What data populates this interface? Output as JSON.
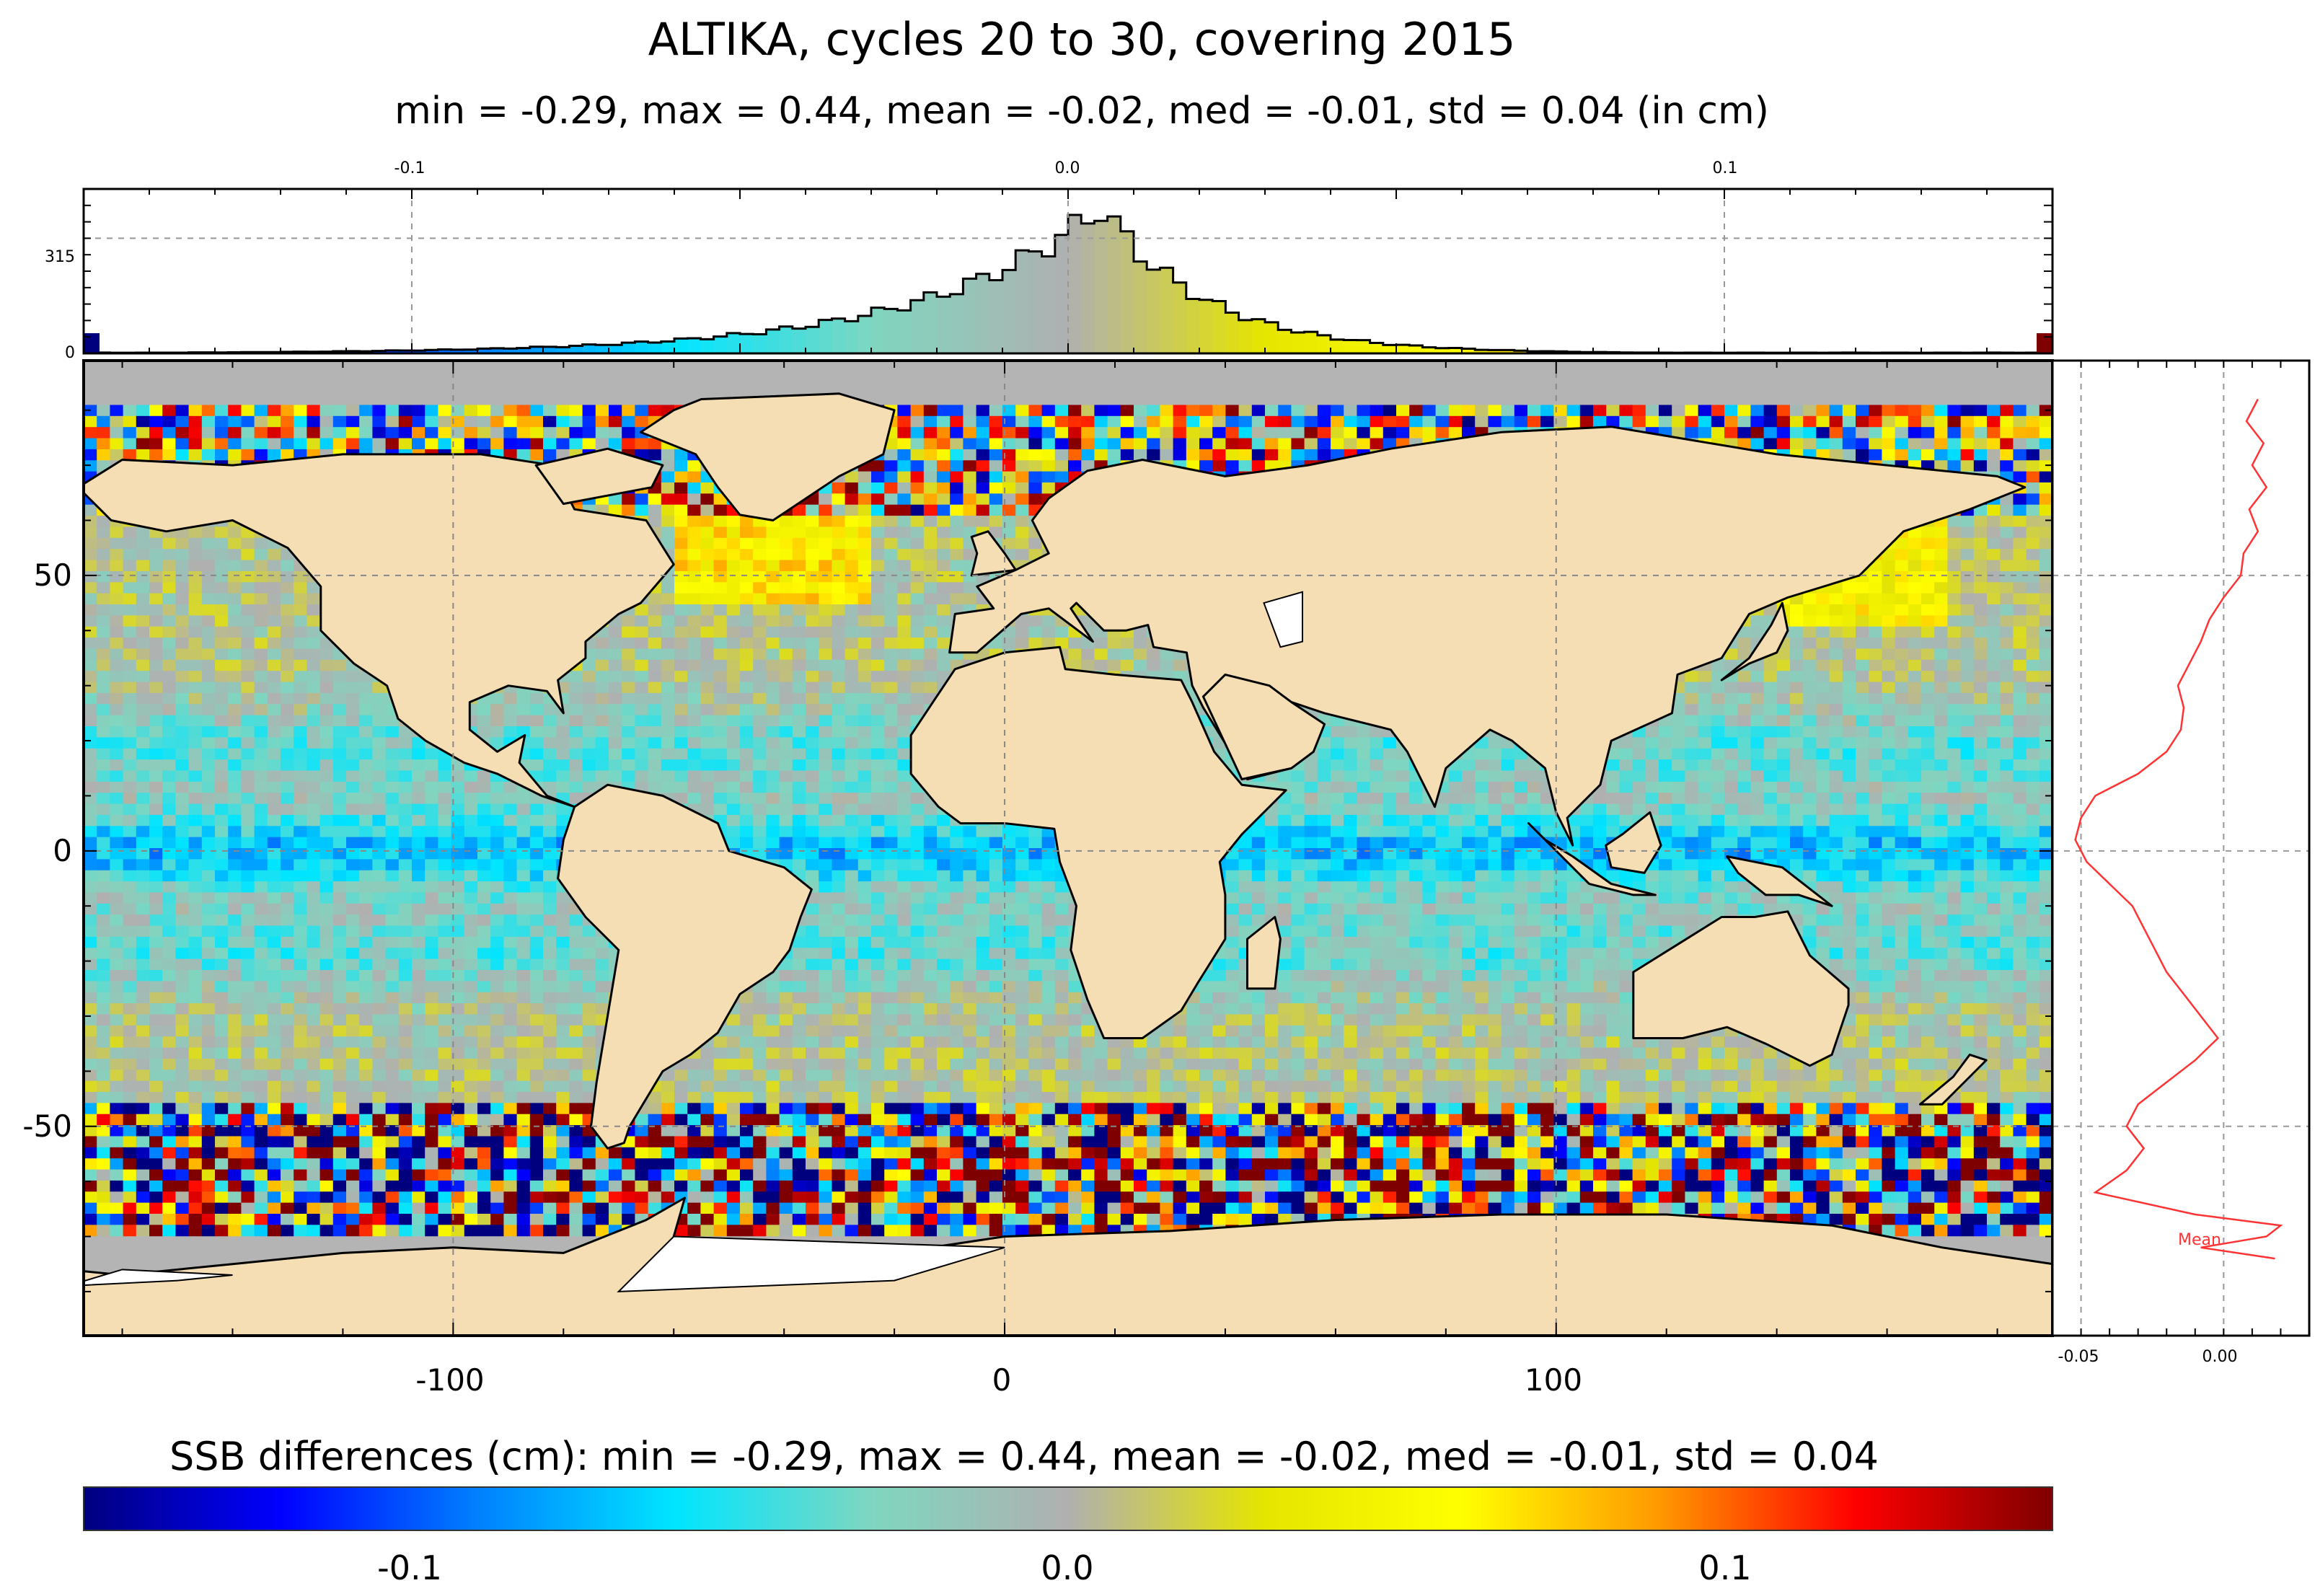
{
  "title": "ALTIKA, cycles 20 to 30, covering 2015",
  "subtitle": "min = -0.29, max =  0.44, mean = -0.02, med = -0.01, std =  0.04 (in cm)",
  "colorbar": {
    "title": "SSB differences (cm): min = -0.29, max =  0.44, mean = -0.02, med = -0.01, std =  0.04",
    "ticks": [
      "-0.1",
      "0.0",
      "0.1"
    ],
    "colors": [
      "#00007f",
      "#0000ff",
      "#0080ff",
      "#00e5ff",
      "#7fd6c0",
      "#b0b0b0",
      "#e5e500",
      "#ffff00",
      "#ff9900",
      "#ff0000",
      "#7f0000"
    ]
  },
  "histogram": {
    "x_ticks": [
      "-0.1",
      "0.0",
      "0.1"
    ],
    "y_ticks": [
      "315",
      "0"
    ],
    "xlim": [
      -0.15,
      0.15
    ],
    "ylim": [
      0,
      450
    ]
  },
  "map": {
    "lon_ticks": [
      "-100",
      "0",
      "100"
    ],
    "lat_ticks": [
      "50",
      "0",
      "-50"
    ],
    "xlim": [
      -167,
      190
    ],
    "ylim": [
      -88,
      89
    ],
    "land_color": "#f5deb3",
    "ice_color": "#ffffff"
  },
  "profile": {
    "x_ticks": [
      "-0.05",
      "0.00"
    ],
    "xlim": [
      -0.06,
      0.03
    ],
    "legend": "Mean",
    "line_color": "#ff3333",
    "lat": [
      82,
      78,
      74,
      70,
      66,
      62,
      58,
      54,
      50,
      46,
      42,
      38,
      34,
      30,
      26,
      22,
      18,
      14,
      10,
      6,
      2,
      -2,
      -6,
      -10,
      -14,
      -18,
      -22,
      -26,
      -30,
      -34,
      -38,
      -42,
      -46,
      -50,
      -54,
      -58,
      -62,
      -66,
      -68,
      -70,
      -72,
      -74
    ],
    "mean": [
      0.012,
      0.008,
      0.014,
      0.01,
      0.015,
      0.009,
      0.012,
      0.007,
      0.006,
      0.0,
      -0.005,
      -0.008,
      -0.012,
      -0.016,
      -0.014,
      -0.015,
      -0.02,
      -0.03,
      -0.045,
      -0.05,
      -0.052,
      -0.048,
      -0.04,
      -0.032,
      -0.028,
      -0.024,
      -0.02,
      -0.014,
      -0.008,
      -0.002,
      -0.01,
      -0.02,
      -0.03,
      -0.034,
      -0.028,
      -0.034,
      -0.045,
      -0.01,
      0.02,
      0.015,
      -0.008,
      0.018
    ]
  }
}
